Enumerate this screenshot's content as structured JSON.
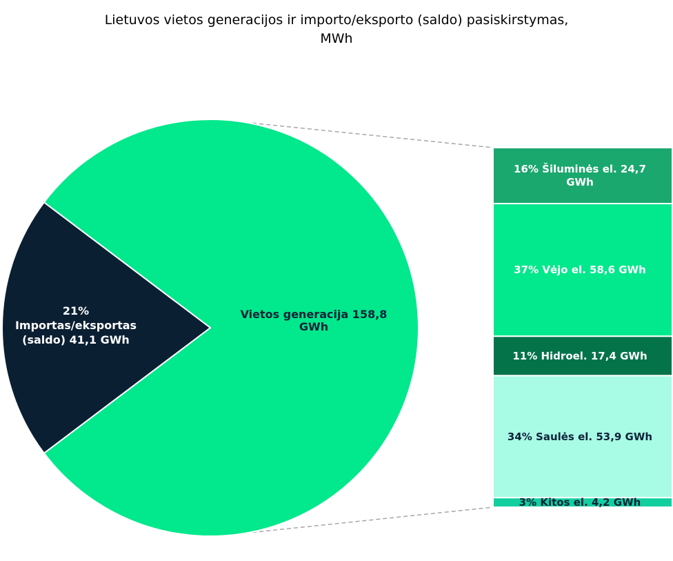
{
  "chart_data": {
    "type": "pie",
    "variant": "bar-of-pie",
    "title_line1": "Lietuvos vietos generacijos ir importo/eksporto (saldo) pasiskirstymas,",
    "title_line2": "MWh",
    "pie": {
      "slices": [
        {
          "label_lines": [
            "Vietos generacija   158,8",
            "GWh"
          ],
          "value": 158.8,
          "percent": 79,
          "color": "#02e88c",
          "text_color": "#0d2238"
        },
        {
          "label_lines": [
            "21%",
            "Importas/eksportas",
            "(saldo)  41,1 GWh"
          ],
          "value": 41.1,
          "percent": 21,
          "color": "#0b1f33",
          "text_color": "#ffffff"
        }
      ]
    },
    "breakdown": {
      "of": "Vietos generacija",
      "segments": [
        {
          "label": "16% Šiluminės el.  24,7 GWh",
          "label_lines": [
            "16% Šiluminės el.  24,7",
            "GWh"
          ],
          "value": 24.7,
          "percent": 16,
          "color": "#1aa86e",
          "text_color": "#ffffff"
        },
        {
          "label": "37% Vėjo el.  58,6 GWh",
          "label_lines": [
            "37% Vėjo el.  58,6 GWh"
          ],
          "value": 58.6,
          "percent": 37,
          "color": "#02e88c",
          "text_color": "#ffffff"
        },
        {
          "label": "11% Hidroel.  17,4 GWh",
          "label_lines": [
            "11% Hidroel.  17,4 GWh"
          ],
          "value": 17.4,
          "percent": 11,
          "color": "#04734a",
          "text_color": "#ffffff"
        },
        {
          "label": "34% Saulės el.  53,9 GWh",
          "label_lines": [
            "34% Saulės el.  53,9 GWh"
          ],
          "value": 53.9,
          "percent": 34,
          "color": "#a8fbe5",
          "text_color": "#0d2238"
        },
        {
          "label": "3% Kitos el.  4,2 GWh",
          "label_lines": [
            "3% Kitos el.  4,2 GWh"
          ],
          "value": 4.2,
          "percent": 3,
          "color": "#12cfa0",
          "text_color": "#0d2238"
        }
      ]
    },
    "connector_color": "#a6a6a6",
    "legend": "none",
    "grid": false
  }
}
